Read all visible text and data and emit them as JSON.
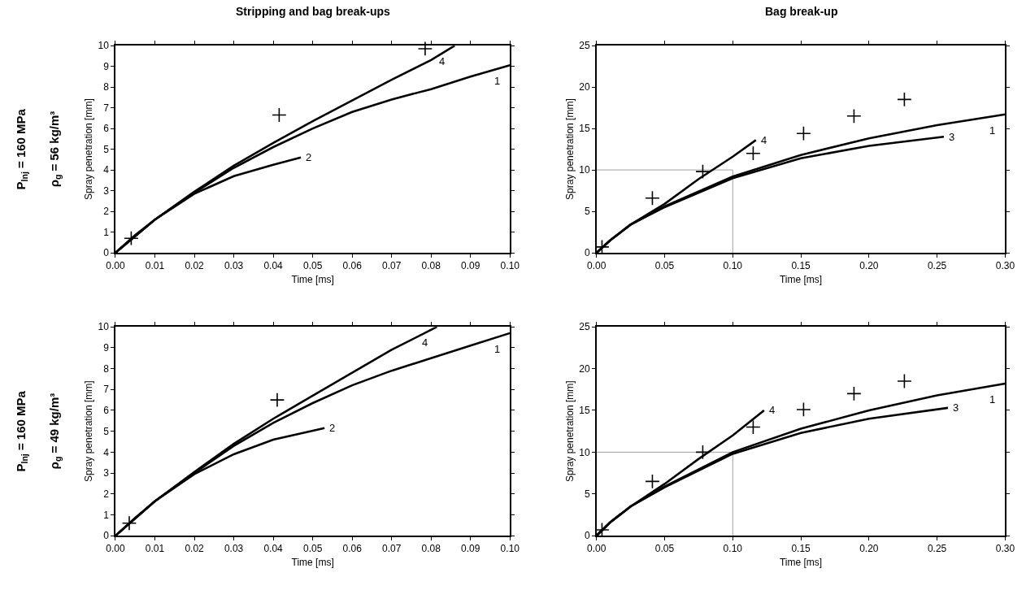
{
  "chart_data": [
    {
      "type": "line",
      "title": "Stripping and bag break-ups",
      "xlabel": "Time [ms]",
      "ylabel": "Spray penetration [mm]",
      "annotations": [
        "P$_{Inj}$ = 160 MPa",
        "ρ$_{g}$ = 56 kg/m³"
      ],
      "xlim": [
        0,
        0.1
      ],
      "ylim": [
        0,
        10
      ],
      "xticks": [
        {
          "value": 0,
          "label": "0.00"
        },
        0.01,
        0.02,
        0.03,
        0.04,
        0.05,
        0.06,
        0.07,
        0.08,
        0.09,
        {
          "value": 0.1,
          "label": "0.10"
        }
      ],
      "yticks": [
        0,
        1,
        2,
        3,
        4,
        5,
        6,
        7,
        8,
        9,
        10
      ],
      "series": [
        {
          "name": "1",
          "color": "#000000",
          "marker": "none",
          "x": [
            0,
            0.005,
            0.01,
            0.02,
            0.03,
            0.04,
            0.05,
            0.06,
            0.07,
            0.08,
            0.09,
            0.1
          ],
          "values": [
            0,
            0.85,
            1.6,
            2.9,
            4.1,
            5.1,
            6.0,
            6.8,
            7.4,
            7.9,
            8.5,
            9.05
          ]
        },
        {
          "name": "2",
          "color": "#000000",
          "marker": "none",
          "x": [
            0,
            0.01,
            0.02,
            0.03,
            0.04,
            0.047
          ],
          "values": [
            0,
            1.6,
            2.85,
            3.7,
            4.25,
            4.6
          ]
        },
        {
          "name": "4",
          "color": "#000000",
          "marker": "none",
          "x": [
            0,
            0.01,
            0.02,
            0.03,
            0.04,
            0.05,
            0.06,
            0.07,
            0.08,
            0.086
          ],
          "values": [
            0,
            1.6,
            2.95,
            4.2,
            5.3,
            6.35,
            7.35,
            8.35,
            9.3,
            10.0
          ]
        },
        {
          "type": "scatter",
          "color": "#000000",
          "marker": "cross",
          "x": [
            0.004,
            0.0415,
            0.0785
          ],
          "values": [
            0.7,
            6.65,
            9.85
          ]
        }
      ]
    },
    {
      "type": "line",
      "title": "Bag break-up",
      "xlabel": "Time [ms]",
      "ylabel": "Spray penetration [mm]",
      "xlim": [
        0,
        0.3
      ],
      "ylim": [
        0,
        25
      ],
      "xticks": [
        {
          "value": 0,
          "label": "0.00"
        },
        0.05,
        {
          "value": 0.1,
          "label": "0.10"
        },
        0.15,
        {
          "value": 0.2,
          "label": "0.20"
        },
        0.25,
        {
          "value": 0.3,
          "label": "0.30"
        }
      ],
      "yticks": [
        0,
        5,
        10,
        15,
        20,
        25
      ],
      "series": [
        {
          "color": "#a0a0a0",
          "marker": "none",
          "x": [
            0,
            0.1,
            0.1
          ],
          "values": [
            10,
            10,
            0
          ]
        },
        {
          "name": "1",
          "color": "#000000",
          "marker": "none",
          "x": [
            0,
            0.01,
            0.025,
            0.05,
            0.1,
            0.15,
            0.2,
            0.25,
            0.3
          ],
          "values": [
            0,
            1.5,
            3.4,
            5.6,
            9.2,
            11.8,
            13.8,
            15.4,
            16.7
          ]
        },
        {
          "name": "3",
          "color": "#000000",
          "marker": "none",
          "x": [
            0,
            0.01,
            0.025,
            0.05,
            0.1,
            0.15,
            0.2,
            0.255
          ],
          "values": [
            0,
            1.5,
            3.4,
            5.5,
            9.0,
            11.4,
            12.9,
            14.0
          ]
        },
        {
          "name": "4",
          "color": "#000000",
          "marker": "none",
          "x": [
            0,
            0.01,
            0.025,
            0.05,
            0.075,
            0.1,
            0.117
          ],
          "values": [
            0,
            1.5,
            3.4,
            5.9,
            8.9,
            11.6,
            13.6
          ]
        },
        {
          "type": "scatter",
          "color": "#000000",
          "marker": "cross",
          "x": [
            0.004,
            0.041,
            0.078,
            0.115,
            0.152,
            0.189,
            0.226
          ],
          "values": [
            0.7,
            6.6,
            9.8,
            12.0,
            14.4,
            16.5,
            18.5
          ]
        }
      ]
    },
    {
      "type": "line",
      "xlabel": "Time [ms]",
      "ylabel": "Spray penetration [mm]",
      "annotations": [
        "P$_{Inj}$ = 160 MPa",
        "ρ$_{g}$ = 49 kg/m³"
      ],
      "xlim": [
        0,
        0.1
      ],
      "ylim": [
        0,
        10
      ],
      "xticks": [
        {
          "value": 0,
          "label": "0.00"
        },
        0.01,
        0.02,
        0.03,
        0.04,
        0.05,
        0.06,
        0.07,
        0.08,
        0.09,
        {
          "value": 0.1,
          "label": "0.10"
        }
      ],
      "yticks": [
        0,
        1,
        2,
        3,
        4,
        5,
        6,
        7,
        8,
        9,
        10
      ],
      "series": [
        {
          "name": "1",
          "color": "#000000",
          "marker": "none",
          "x": [
            0,
            0.005,
            0.01,
            0.02,
            0.03,
            0.04,
            0.05,
            0.06,
            0.07,
            0.08,
            0.09,
            0.1
          ],
          "values": [
            0,
            0.85,
            1.65,
            3.0,
            4.3,
            5.4,
            6.35,
            7.2,
            7.9,
            8.5,
            9.1,
            9.7
          ]
        },
        {
          "name": "2",
          "color": "#000000",
          "marker": "none",
          "x": [
            0,
            0.01,
            0.02,
            0.03,
            0.04,
            0.053
          ],
          "values": [
            0,
            1.65,
            2.95,
            3.9,
            4.6,
            5.15
          ]
        },
        {
          "name": "4",
          "color": "#000000",
          "marker": "none",
          "x": [
            0,
            0.01,
            0.02,
            0.03,
            0.04,
            0.05,
            0.06,
            0.07,
            0.0815
          ],
          "values": [
            0,
            1.65,
            3.05,
            4.4,
            5.6,
            6.7,
            7.8,
            8.9,
            10.0
          ]
        },
        {
          "type": "scatter",
          "color": "#000000",
          "marker": "cross",
          "x": [
            0.0035,
            0.041
          ],
          "values": [
            0.6,
            6.5
          ]
        }
      ]
    },
    {
      "type": "line",
      "xlabel": "Time [ms]",
      "ylabel": "Spray penetration [mm]",
      "xlim": [
        0,
        0.3
      ],
      "ylim": [
        0,
        25
      ],
      "xticks": [
        {
          "value": 0,
          "label": "0.00"
        },
        0.05,
        {
          "value": 0.1,
          "label": "0.10"
        },
        0.15,
        {
          "value": 0.2,
          "label": "0.20"
        },
        0.25,
        {
          "value": 0.3,
          "label": "0.30"
        }
      ],
      "yticks": [
        0,
        5,
        10,
        15,
        20,
        25
      ],
      "series": [
        {
          "color": "#a0a0a0",
          "marker": "none",
          "x": [
            0,
            0.1,
            0.1
          ],
          "values": [
            10,
            10,
            0
          ]
        },
        {
          "name": "1",
          "color": "#000000",
          "marker": "none",
          "x": [
            0,
            0.01,
            0.025,
            0.05,
            0.1,
            0.15,
            0.2,
            0.25,
            0.3
          ],
          "values": [
            0,
            1.6,
            3.5,
            5.9,
            10.0,
            12.8,
            15.0,
            16.8,
            18.2
          ]
        },
        {
          "name": "3",
          "color": "#000000",
          "marker": "none",
          "x": [
            0,
            0.01,
            0.025,
            0.05,
            0.1,
            0.15,
            0.2,
            0.258
          ],
          "values": [
            0,
            1.6,
            3.5,
            5.8,
            9.8,
            12.3,
            14.0,
            15.3
          ]
        },
        {
          "name": "4",
          "color": "#000000",
          "marker": "none",
          "x": [
            0,
            0.01,
            0.025,
            0.05,
            0.075,
            0.1,
            0.123
          ],
          "values": [
            0,
            1.6,
            3.5,
            6.2,
            9.2,
            12.0,
            15.0
          ]
        },
        {
          "type": "scatter",
          "color": "#000000",
          "marker": "cross",
          "x": [
            0.004,
            0.041,
            0.078,
            0.115,
            0.152,
            0.189,
            0.226
          ],
          "values": [
            0.7,
            6.5,
            10.0,
            13.0,
            15.1,
            17.0,
            18.5
          ]
        }
      ]
    }
  ]
}
